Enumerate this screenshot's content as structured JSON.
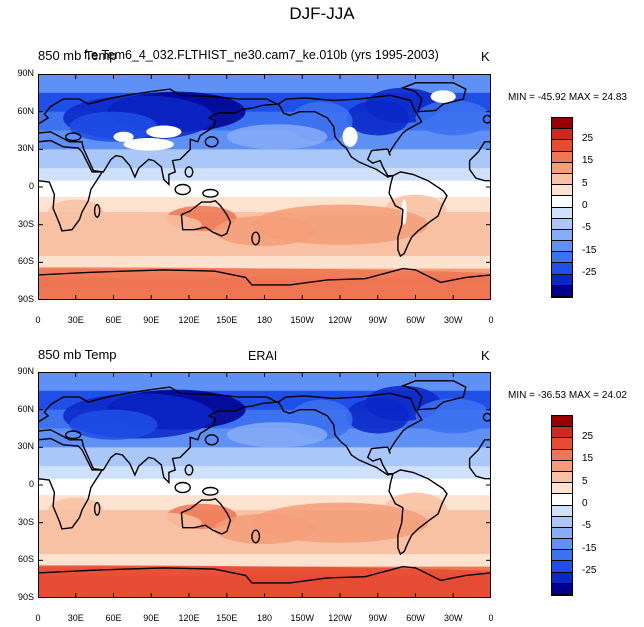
{
  "title": "DJF-JJA",
  "units": "K",
  "colors": {
    "ocean_base": "#d6e8fb",
    "land_line": "#000000",
    "missing": "#ffffff"
  },
  "colorbar": {
    "colors": [
      "#000090",
      "#0a27c8",
      "#1e4fe6",
      "#3d72f0",
      "#5f90f5",
      "#86adf7",
      "#aac7fa",
      "#cfe0fc",
      "#ffffff",
      "#fde2cf",
      "#f9c1a3",
      "#f59d78",
      "#ef7652",
      "#e64b34",
      "#cc2a1d",
      "#990000"
    ],
    "labels": [
      "25",
      "15",
      "5",
      "0",
      "-5",
      "-15",
      "-25"
    ]
  },
  "lat_ticks": [
    "90N",
    "60N",
    "30N",
    "0",
    "30S",
    "60S",
    "90S"
  ],
  "lon_ticks": [
    "0",
    "30E",
    "60E",
    "90E",
    "120E",
    "150E",
    "180",
    "150W",
    "120W",
    "90W",
    "60W",
    "30W",
    "0"
  ],
  "panels": [
    {
      "left_label": "850 mb Temp",
      "center_label": "f.e.Tem6_4_032.FLTHIST_ne30.cam7_ke.010b (yrs 1995-2003)",
      "stats": "MIN = -45.92 MAX =  24.83"
    },
    {
      "left_label": "850 mb Temp",
      "center_label": "ERAI",
      "stats": "MIN = -36.53 MAX =  24.02"
    }
  ]
}
